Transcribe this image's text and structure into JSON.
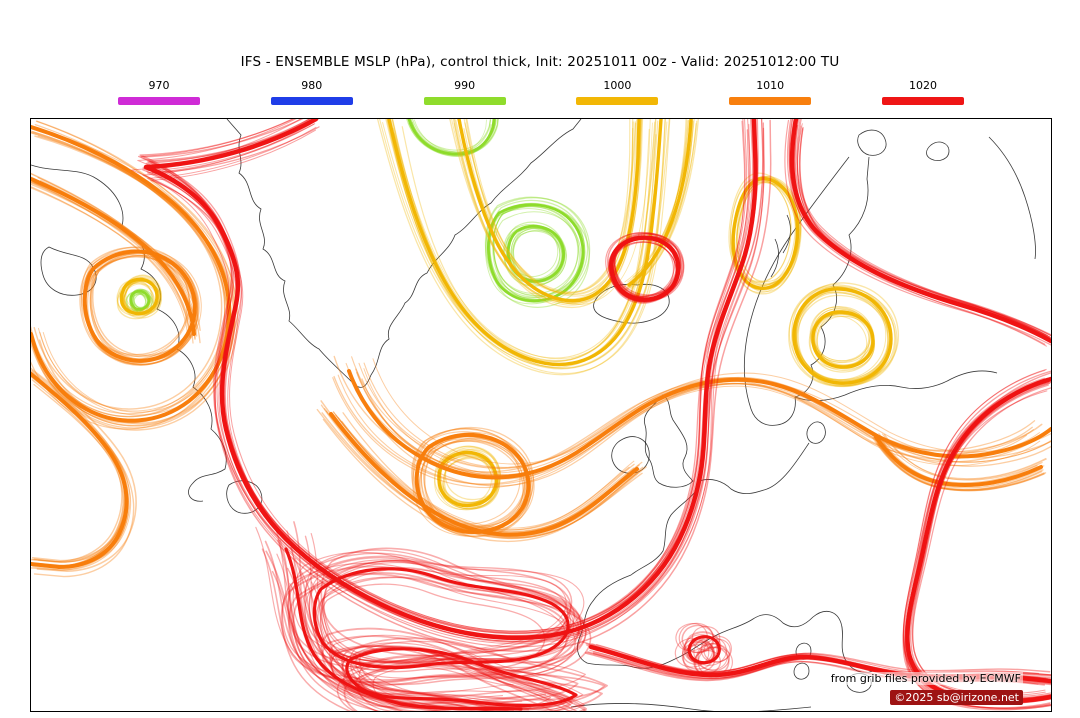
{
  "header": {
    "title": "IFS - ENSEMBLE MSLP (hPa), control thick, Init: 20251011 00z - Valid: 20251012:00 TU"
  },
  "legend": {
    "items": [
      {
        "label": "970",
        "color": "#cf2bd6"
      },
      {
        "label": "980",
        "color": "#1f3de8"
      },
      {
        "label": "990",
        "color": "#8fdc2c"
      },
      {
        "label": "1000",
        "color": "#f2b705"
      },
      {
        "label": "1010",
        "color": "#f87f0e"
      },
      {
        "label": "1020",
        "color": "#ef1515"
      }
    ]
  },
  "map": {
    "coast_color": "#161616",
    "attribution_line1": "from grib files provided by ECMWF",
    "attribution_line2": "©2025 sb@irizone.net"
  }
}
